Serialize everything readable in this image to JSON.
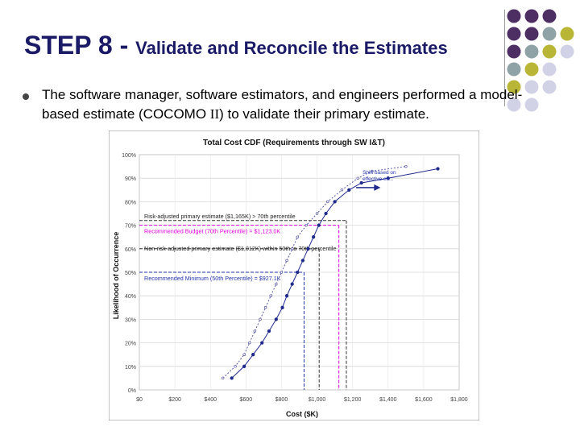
{
  "slide": {
    "title_main": "STEP 8",
    "title_sep": " - ",
    "title_rest": "Validate and Reconcile the Estimates",
    "bullet_part1": "The software manager, software estimators, and engineers performed a model-based estimate (COCOMO ",
    "bullet_roman": "II",
    "bullet_part2": ") to validate their primary estimate."
  },
  "decor": {
    "dot_colors": {
      "purple": "#4d2f63",
      "teal": "#8fa3a6",
      "olive": "#b9b637",
      "lavender": "#d2d2e6"
    },
    "rows": [
      [
        "purple",
        "purple",
        "purple",
        "none"
      ],
      [
        "purple",
        "purple",
        "teal",
        "olive"
      ],
      [
        "purple",
        "teal",
        "olive",
        "lavender"
      ],
      [
        "teal",
        "olive",
        "lavender",
        "none"
      ],
      [
        "olive",
        "lavender",
        "lavender",
        "none"
      ],
      [
        "lavender",
        "lavender",
        "none",
        "none"
      ]
    ]
  },
  "chart_data": {
    "type": "line",
    "title": "Total Cost CDF (Requirements through SW I&T)",
    "xlabel": "Cost ($K)",
    "ylabel": "Likelihood of Occurrence",
    "xlim": [
      0,
      1800
    ],
    "ylim": [
      0,
      100
    ],
    "x_ticks": [
      "$0",
      "$200",
      "$400",
      "$600",
      "$800",
      "$1,000",
      "$1,200",
      "$1,400",
      "$1,600",
      "$1,800"
    ],
    "y_ticks": [
      "0%",
      "10%",
      "20%",
      "30%",
      "40%",
      "50%",
      "60%",
      "70%",
      "80%",
      "90%",
      "100%"
    ],
    "grid": true,
    "series": [
      {
        "color": "#1f2a8c",
        "style": "solid",
        "points": [
          [
            520,
            5
          ],
          [
            590,
            10
          ],
          [
            640,
            15
          ],
          [
            690,
            20
          ],
          [
            730,
            25
          ],
          [
            770,
            30
          ],
          [
            805,
            35
          ],
          [
            830,
            40
          ],
          [
            860,
            45
          ],
          [
            890,
            50
          ],
          [
            920,
            55
          ],
          [
            950,
            60
          ],
          [
            980,
            65
          ],
          [
            1010,
            70
          ],
          [
            1050,
            75
          ],
          [
            1100,
            80
          ],
          [
            1180,
            85
          ],
          [
            1250,
            88
          ],
          [
            1400,
            90
          ],
          [
            1680,
            94
          ]
        ]
      },
      {
        "color": "#5a5aa8",
        "style": "dotted",
        "points": [
          [
            470,
            5
          ],
          [
            540,
            10
          ],
          [
            590,
            15
          ],
          [
            620,
            20
          ],
          [
            650,
            25
          ],
          [
            680,
            30
          ],
          [
            710,
            35
          ],
          [
            740,
            40
          ],
          [
            770,
            45
          ],
          [
            800,
            50
          ],
          [
            830,
            55
          ],
          [
            860,
            60
          ],
          [
            890,
            65
          ],
          [
            940,
            70
          ],
          [
            1000,
            75
          ],
          [
            1060,
            80
          ],
          [
            1140,
            85
          ],
          [
            1230,
            90
          ],
          [
            1310,
            93
          ],
          [
            1500,
            95
          ]
        ]
      }
    ],
    "reference_lines": [
      {
        "label": "Risk-adjusted primary estimate ($1,165K) > 70th percentile",
        "y": 72,
        "x": 1165,
        "color": "#333333",
        "style": "dashed",
        "label_color": "#222222"
      },
      {
        "label": "Recommended Budget (70th Percentile) = $1,123.0K",
        "y": 70,
        "x": 1123,
        "color": "#e000e0",
        "style": "dashed",
        "label_color": "#e000e0"
      },
      {
        "label": "Non-risk-adjusted primary estimate ($1,012K) within 50th to 70th percentile",
        "y": 60,
        "x": 1012,
        "color": "#333333",
        "style": "dashed",
        "label_color": "#222222"
      },
      {
        "label": "Recommended Minimum (50th Percentile) = $927.1K",
        "y": 50,
        "x": 927,
        "color": "#2233aa",
        "style": "dashed",
        "label_color": "#2233aa"
      }
    ],
    "annotation": {
      "label_line1": "Shift based on",
      "label_line2": "effective ex...",
      "x_from": 1220,
      "x_to": 1330,
      "y": 86
    }
  }
}
